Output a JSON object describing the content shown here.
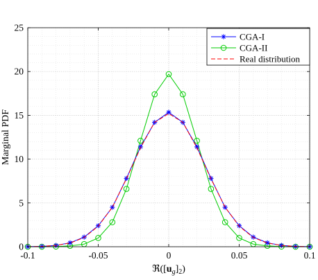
{
  "chart_data": {
    "type": "line",
    "xlabel": "ℜ([u_g]₂)",
    "xlabel_parts": {
      "prefix": "ℜ([",
      "bold": "u",
      "sub1": "g",
      "close": "]",
      "sub2": "2",
      "suffix": ")"
    },
    "ylabel": "Marginal PDF",
    "xlim": [
      -0.1,
      0.1
    ],
    "ylim": [
      0,
      25
    ],
    "xticks": [
      -0.1,
      -0.05,
      0,
      0.05,
      0.1
    ],
    "xtick_labels": [
      "-0.1",
      "-0.05",
      "0",
      "0.05",
      "0.1"
    ],
    "yticks": [
      0,
      5,
      10,
      15,
      20,
      25
    ],
    "ytick_labels": [
      "0",
      "5",
      "10",
      "15",
      "20",
      "25"
    ],
    "grid": true,
    "legend_position": "top-right",
    "x": [
      -0.1,
      -0.09,
      -0.08,
      -0.07,
      -0.06,
      -0.05,
      -0.04,
      -0.03,
      -0.02,
      -0.01,
      0,
      0.01,
      0.02,
      0.03,
      0.04,
      0.05,
      0.06,
      0.07,
      0.08,
      0.09,
      0.1
    ],
    "series": [
      {
        "name": "CGA-I",
        "color": "#0000ff",
        "marker": "asterisk",
        "line": "solid",
        "values": [
          0.01,
          0.04,
          0.15,
          0.45,
          1.1,
          2.4,
          4.5,
          7.8,
          11.4,
          14.2,
          15.35,
          14.2,
          11.4,
          7.8,
          4.5,
          2.4,
          1.1,
          0.45,
          0.15,
          0.04,
          0.01
        ]
      },
      {
        "name": "CGA-II",
        "color": "#00cc00",
        "marker": "circle",
        "line": "solid",
        "values": [
          0.0,
          0.0,
          0.02,
          0.1,
          0.3,
          1.0,
          2.8,
          6.6,
          12.1,
          17.4,
          19.7,
          17.4,
          12.1,
          6.6,
          2.8,
          1.0,
          0.3,
          0.1,
          0.02,
          0.0,
          0.0
        ]
      },
      {
        "name": "Real distribution",
        "color": "#ff0000",
        "marker": "none",
        "line": "dashed",
        "values": [
          0.01,
          0.04,
          0.15,
          0.42,
          1.05,
          2.35,
          4.5,
          7.75,
          11.3,
          14.2,
          15.2,
          14.2,
          11.3,
          7.75,
          4.5,
          2.35,
          1.05,
          0.42,
          0.15,
          0.04,
          0.01
        ]
      }
    ]
  }
}
